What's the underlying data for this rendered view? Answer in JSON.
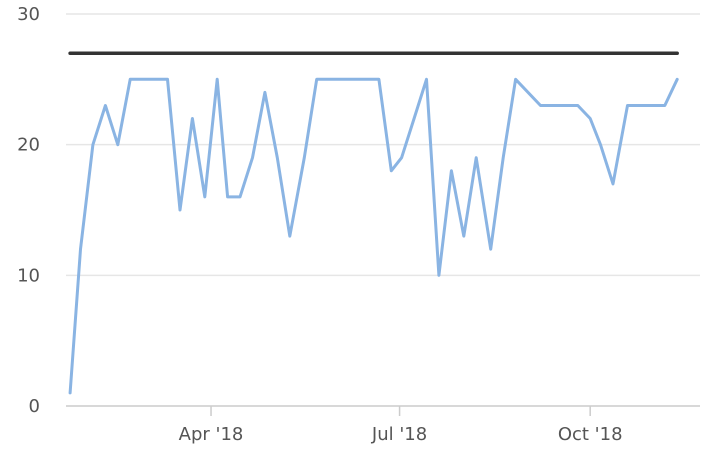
{
  "chart_data": {
    "type": "line",
    "title": "",
    "xlabel": "",
    "ylabel": "",
    "ylim": [
      0,
      30
    ],
    "yticks": [
      0,
      10,
      20,
      30
    ],
    "xticks": [
      {
        "date": "2018-04-01",
        "label": "Apr '18"
      },
      {
        "date": "2018-07-01",
        "label": "Jul '18"
      },
      {
        "date": "2018-10-01",
        "label": "Oct '18"
      }
    ],
    "xlim": [
      "2018-01-21",
      "2018-11-23"
    ],
    "grid": true,
    "legend": "none",
    "series": [
      {
        "color": "#8ab4e3",
        "points": [
          [
            "2018-01-23",
            1
          ],
          [
            "2018-01-28",
            12
          ],
          [
            "2018-02-03",
            20
          ],
          [
            "2018-02-09",
            23
          ],
          [
            "2018-02-15",
            20
          ],
          [
            "2018-02-21",
            25
          ],
          [
            "2018-02-27",
            25
          ],
          [
            "2018-03-06",
            25
          ],
          [
            "2018-03-11",
            25
          ],
          [
            "2018-03-17",
            15
          ],
          [
            "2018-03-23",
            22
          ],
          [
            "2018-03-29",
            16
          ],
          [
            "2018-04-04",
            25
          ],
          [
            "2018-04-09",
            16
          ],
          [
            "2018-04-15",
            16
          ],
          [
            "2018-04-21",
            19
          ],
          [
            "2018-04-27",
            24
          ],
          [
            "2018-05-03",
            19
          ],
          [
            "2018-05-09",
            13
          ],
          [
            "2018-05-16",
            19
          ],
          [
            "2018-05-22",
            25
          ],
          [
            "2018-05-28",
            25
          ],
          [
            "2018-06-03",
            25
          ],
          [
            "2018-06-09",
            25
          ],
          [
            "2018-06-15",
            25
          ],
          [
            "2018-06-21",
            25
          ],
          [
            "2018-06-27",
            18
          ],
          [
            "2018-07-02",
            19
          ],
          [
            "2018-07-08",
            22
          ],
          [
            "2018-07-14",
            25
          ],
          [
            "2018-07-20",
            10
          ],
          [
            "2018-07-26",
            18
          ],
          [
            "2018-08-01",
            13
          ],
          [
            "2018-08-07",
            19
          ],
          [
            "2018-08-14",
            12
          ],
          [
            "2018-08-20",
            19
          ],
          [
            "2018-08-26",
            25
          ],
          [
            "2018-09-07",
            23
          ],
          [
            "2018-09-13",
            23
          ],
          [
            "2018-09-19",
            23
          ],
          [
            "2018-09-25",
            23
          ],
          [
            "2018-10-01",
            22
          ],
          [
            "2018-10-06",
            20
          ],
          [
            "2018-10-12",
            17
          ],
          [
            "2018-10-19",
            23
          ],
          [
            "2018-10-25",
            23
          ],
          [
            "2018-10-31",
            23
          ],
          [
            "2018-11-06",
            23
          ],
          [
            "2018-11-12",
            25
          ]
        ]
      },
      {
        "color": "#333333",
        "points": [
          [
            "2018-01-23",
            27
          ],
          [
            "2018-11-12",
            27
          ]
        ]
      }
    ]
  }
}
